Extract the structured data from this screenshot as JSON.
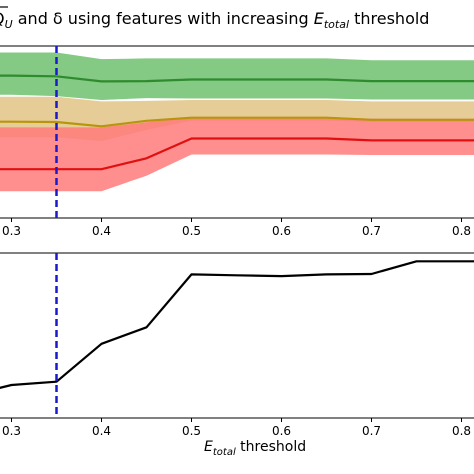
{
  "title": {
    "prefix": "Q",
    "prefix_sub": "U",
    "middle": " and δ using features with increasing ",
    "var": "E",
    "var_sub": "total",
    "suffix": " threshold"
  },
  "xlabel": {
    "var": "E",
    "var_sub": "total",
    "suffix": " threshold"
  },
  "colors": {
    "green": "#2e8b2e",
    "green_band": "#6fbf6f",
    "olive": "#b8950b",
    "olive_band": "#e2c486",
    "red": "#e01010",
    "red_band": "#ff7a7a",
    "black": "#000000",
    "vline": "#1a1acc"
  },
  "chart_data": [
    {
      "type": "line",
      "panel": "top",
      "x_tick_labels": [
        "0.3",
        "0.4",
        "0.5",
        "0.6",
        "0.7",
        "0.8"
      ],
      "x_ticks": [
        0.3,
        0.4,
        0.5,
        0.6,
        0.7,
        0.8
      ],
      "xlim": [
        0.285,
        0.815
      ],
      "ylim": [
        0,
        1
      ],
      "vertical_line": {
        "x": 0.35,
        "style": "dashed"
      },
      "x": [
        0.285,
        0.3,
        0.35,
        0.4,
        0.45,
        0.5,
        0.55,
        0.6,
        0.65,
        0.7,
        0.75,
        0.8,
        0.815
      ],
      "series": [
        {
          "color_key": "green",
          "values": [
            0.828,
            0.828,
            0.824,
            0.794,
            0.796,
            0.805,
            0.805,
            0.805,
            0.805,
            0.796,
            0.796,
            0.796,
            0.796
          ],
          "upper": [
            0.962,
            0.962,
            0.962,
            0.924,
            0.928,
            0.928,
            0.928,
            0.928,
            0.928,
            0.917,
            0.917,
            0.917,
            0.917
          ],
          "lower": [
            0.716,
            0.716,
            0.709,
            0.686,
            0.697,
            0.695,
            0.695,
            0.695,
            0.695,
            0.689,
            0.689,
            0.689,
            0.689
          ]
        },
        {
          "color_key": "olive",
          "values": [
            0.56,
            0.56,
            0.558,
            0.533,
            0.565,
            0.583,
            0.583,
            0.583,
            0.583,
            0.571,
            0.571,
            0.571,
            0.571
          ],
          "upper": [
            0.705,
            0.705,
            0.705,
            0.678,
            0.681,
            0.686,
            0.686,
            0.686,
            0.686,
            0.678,
            0.678,
            0.678,
            0.678
          ],
          "lower": [
            0.47,
            0.47,
            0.47,
            0.447,
            0.512,
            0.566,
            0.566,
            0.566,
            0.566,
            0.56,
            0.56,
            0.56,
            0.56
          ]
        },
        {
          "color_key": "red",
          "values": [
            0.284,
            0.284,
            0.284,
            0.284,
            0.347,
            0.462,
            0.462,
            0.462,
            0.462,
            0.451,
            0.451,
            0.451,
            0.451
          ],
          "upper": [
            0.527,
            0.527,
            0.527,
            0.527,
            0.557,
            0.587,
            0.587,
            0.587,
            0.587,
            0.578,
            0.578,
            0.578,
            0.578
          ],
          "lower": [
            0.156,
            0.156,
            0.156,
            0.156,
            0.246,
            0.369,
            0.369,
            0.369,
            0.369,
            0.366,
            0.366,
            0.366,
            0.366
          ]
        }
      ]
    },
    {
      "type": "line",
      "panel": "bottom",
      "x_tick_labels": [
        "0.3",
        "0.4",
        "0.5",
        "0.6",
        "0.7",
        "0.8"
      ],
      "x_ticks": [
        0.3,
        0.4,
        0.5,
        0.6,
        0.7,
        0.8
      ],
      "xlim": [
        0.285,
        0.815
      ],
      "ylim": [
        0,
        1
      ],
      "vertical_line": {
        "x": 0.35,
        "style": "dashed"
      },
      "series": [
        {
          "color_key": "black",
          "x": [
            0.285,
            0.3,
            0.35,
            0.4,
            0.45,
            0.5,
            0.55,
            0.6,
            0.65,
            0.7,
            0.75,
            0.8,
            0.815
          ],
          "values": [
            0.18,
            0.2,
            0.22,
            0.45,
            0.55,
            0.87,
            0.865,
            0.86,
            0.87,
            0.873,
            0.95,
            0.95,
            0.95
          ]
        }
      ]
    }
  ]
}
